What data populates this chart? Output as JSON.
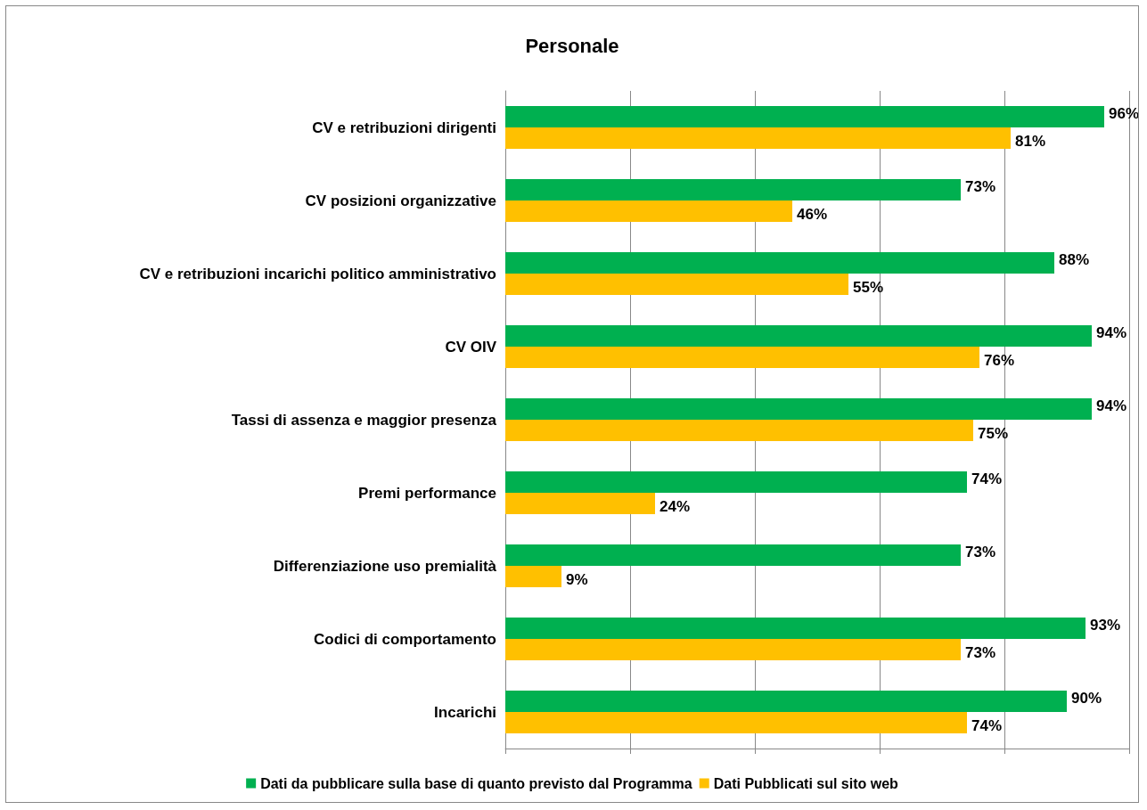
{
  "chart_data": {
    "type": "bar",
    "orientation": "horizontal",
    "title": "Personale",
    "categories": [
      "CV e retribuzioni dirigenti",
      "CV posizioni organizzative",
      "CV e retribuzioni incarichi politico amministrativo",
      "CV OIV",
      "Tassi di assenza e maggior presenza",
      "Premi performance",
      "Differenziazione uso premialità",
      "Codici di comportamento",
      "Incarichi"
    ],
    "series": [
      {
        "name": "Dati da pubblicare sulla base di quanto previsto dal Programma",
        "color": "#00b050",
        "values": [
          96,
          73,
          88,
          94,
          94,
          74,
          73,
          93,
          90
        ],
        "value_labels": [
          "96%",
          "73%",
          "88%",
          "94%",
          "94%",
          "74%",
          "73%",
          "93%",
          "90%"
        ]
      },
      {
        "name": "Dati Pubblicati sul sito web",
        "color": "#ffc000",
        "values": [
          81,
          46,
          55,
          76,
          75,
          24,
          9,
          73,
          74
        ],
        "value_labels": [
          "81%",
          "46%",
          "55%",
          "76%",
          "75%",
          "24%",
          "9%",
          "73%",
          "74%"
        ]
      }
    ],
    "xlim": [
      0,
      100
    ],
    "xticks": [
      {
        "value": 0,
        "label": null
      },
      {
        "value": 20,
        "label": null
      },
      {
        "value": 40,
        "label": null
      },
      {
        "value": 60,
        "label": null
      },
      {
        "value": 80,
        "label": null
      },
      {
        "value": 100,
        "label": null
      }
    ],
    "tick_labels": "y",
    "grid": "x",
    "legend": "bottom"
  }
}
